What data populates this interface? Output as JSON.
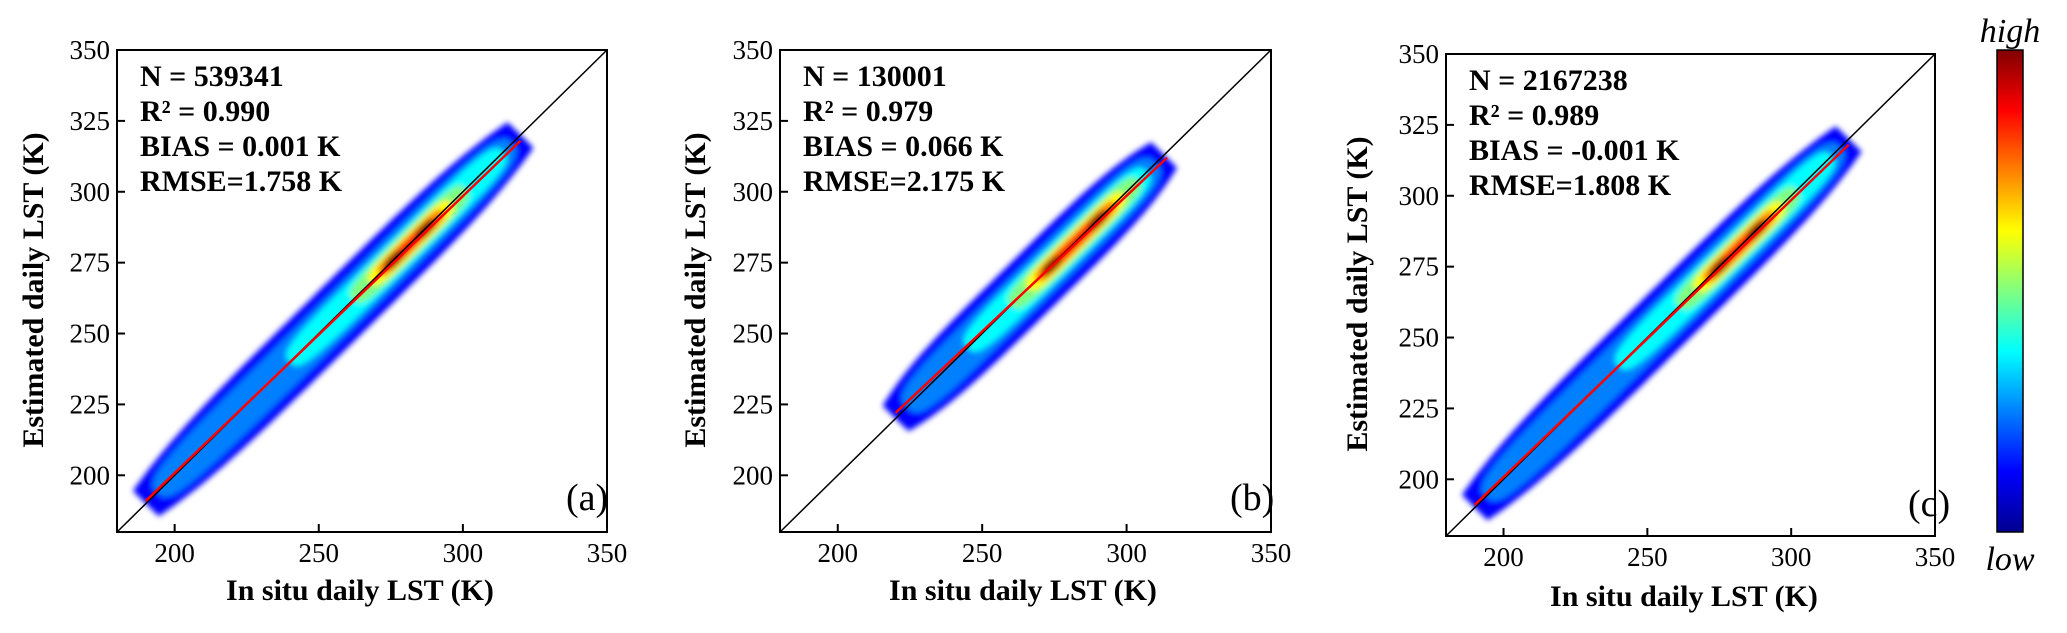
{
  "colors": {
    "colormap": [
      "#00008f",
      "#0000ff",
      "#0080ff",
      "#00ffff",
      "#80ff80",
      "#ffff00",
      "#ff8000",
      "#ff0000",
      "#800000"
    ],
    "fit_line": "#ff0000",
    "one_to_one_line": "#000000"
  },
  "colorbar": {
    "high_label": "high",
    "low_label": "low"
  },
  "chart_data": [
    {
      "type": "scatter",
      "panel_label": "(a)",
      "xlabel": "In situ daily LST (K)",
      "ylabel": "Estimated daily LST (K)",
      "xlim": [
        180,
        350
      ],
      "ylim": [
        180,
        350
      ],
      "xticks": [
        200,
        250,
        300,
        350
      ],
      "yticks": [
        200,
        225,
        250,
        275,
        300,
        325,
        350
      ],
      "stats": {
        "n": "N = 539341",
        "r2": "R² = 0.990",
        "bias": "BIAS = 0.001 K",
        "rmse": "RMSE=1.758 K"
      },
      "data_range": [
        190,
        320
      ],
      "density_peaks": [
        276,
        287
      ],
      "fit_line": {
        "x": [
          190,
          320
        ],
        "y": [
          191,
          318
        ]
      },
      "one_to_one_line": true
    },
    {
      "type": "scatter",
      "panel_label": "(b)",
      "xlabel": "In situ daily LST (K)",
      "ylabel": "Estimated daily LST (K)",
      "xlim": [
        180,
        350
      ],
      "ylim": [
        180,
        350
      ],
      "xticks": [
        200,
        250,
        300,
        350
      ],
      "yticks": [
        200,
        225,
        250,
        275,
        300,
        325,
        350
      ],
      "stats": {
        "n": "N = 130001",
        "r2": "R² = 0.979",
        "bias": "BIAS = 0.066  K",
        "rmse": "RMSE=2.175  K"
      },
      "data_range": [
        220,
        313
      ],
      "density_peaks": [
        274,
        290
      ],
      "fit_line": {
        "x": [
          220,
          314
        ],
        "y": [
          222,
          312
        ]
      },
      "one_to_one_line": true
    },
    {
      "type": "scatter",
      "panel_label": "(c)",
      "xlabel": "In situ daily LST (K)",
      "ylabel": "Estimated daily LST (K)",
      "xlim": [
        180,
        350
      ],
      "ylim": [
        180,
        350
      ],
      "xticks": [
        200,
        250,
        300,
        350
      ],
      "yticks": [
        200,
        225,
        250,
        275,
        300,
        325,
        350
      ],
      "stats": {
        "n": "N = 2167238",
        "r2": "R² = 0.989",
        "bias": "BIAS = -0.001 K",
        "rmse": "RMSE=1.808  K"
      },
      "data_range": [
        190,
        320
      ],
      "density_peaks": [
        275,
        288
      ],
      "fit_line": {
        "x": [
          190,
          320
        ],
        "y": [
          191,
          318
        ]
      },
      "one_to_one_line": true
    }
  ]
}
